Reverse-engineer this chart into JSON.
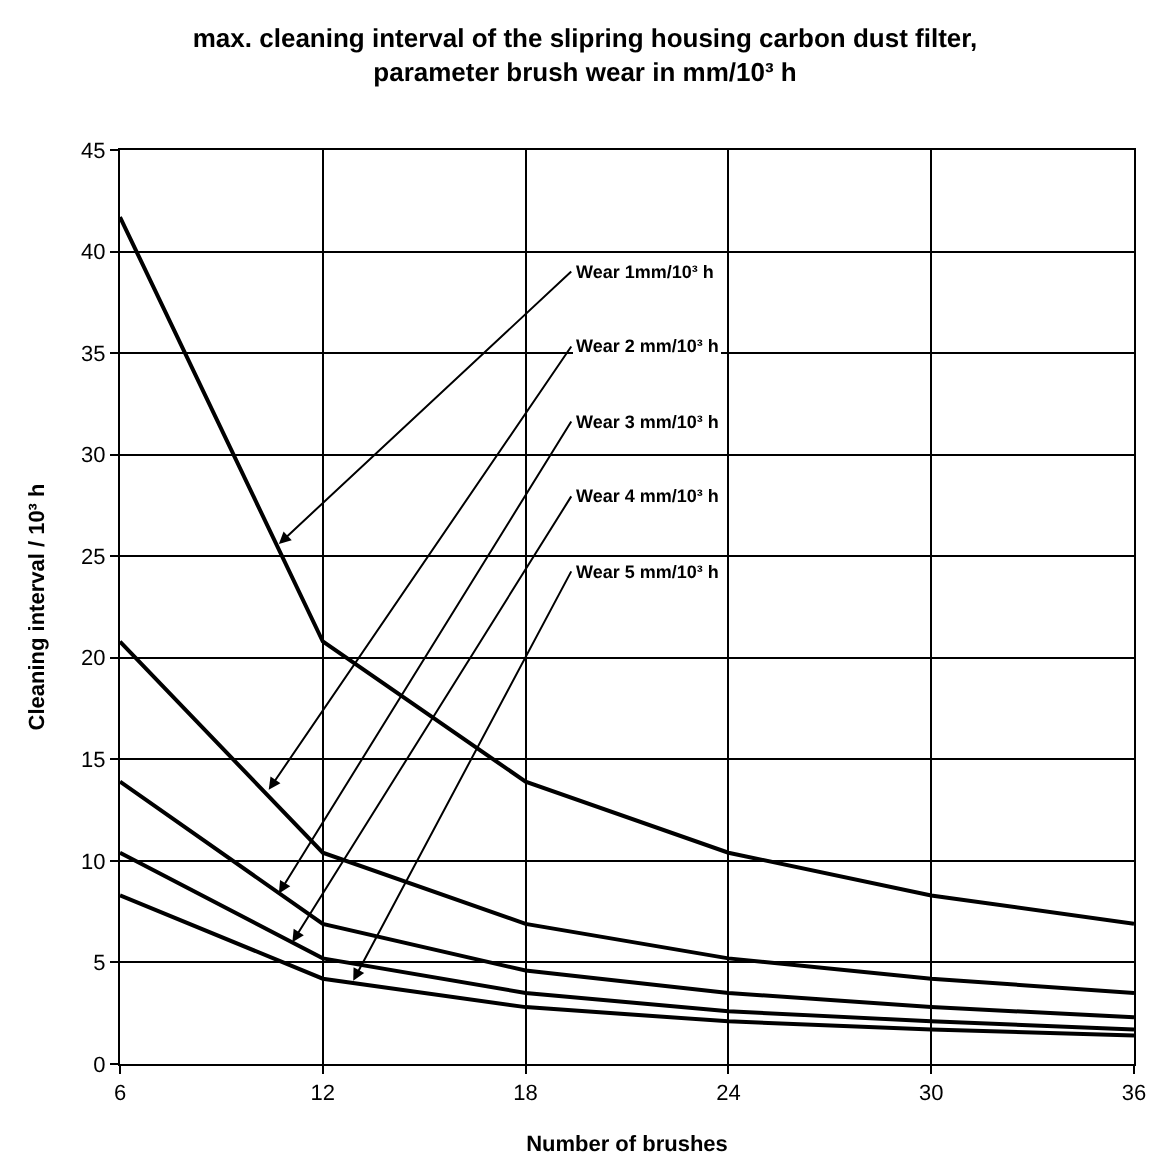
{
  "chart_data": {
    "type": "line",
    "title": "max. cleaning interval of the slipring housing carbon dust filter,\nparameter brush wear in mm/10³ h",
    "xlabel": "Number of brushes",
    "ylabel": "Cleaning interval / 10³ h",
    "x": [
      6,
      12,
      18,
      24,
      30,
      36
    ],
    "series": [
      {
        "color": "#000000",
        "values": [
          41.7,
          20.8,
          13.9,
          10.4,
          8.3,
          6.9
        ]
      },
      {
        "color": "#000000",
        "values": [
          20.8,
          10.4,
          6.9,
          5.2,
          4.2,
          3.5
        ]
      },
      {
        "color": "#000000",
        "values": [
          13.9,
          6.9,
          4.6,
          3.5,
          2.8,
          2.3
        ]
      },
      {
        "color": "#000000",
        "values": [
          10.4,
          5.2,
          3.5,
          2.6,
          2.1,
          1.7
        ]
      },
      {
        "color": "#000000",
        "values": [
          8.3,
          4.2,
          2.8,
          2.1,
          1.7,
          1.4
        ]
      }
    ],
    "annotations": [
      {
        "text": "Wear 1mm/10³ h",
        "x": 10.7,
        "y": 25.6
      },
      {
        "text": "Wear 2 mm/10³ h",
        "x": 10.4,
        "y": 13.5
      },
      {
        "text": "Wear 3 mm/10³ h",
        "x": 10.7,
        "y": 8.4
      },
      {
        "text": "Wear 4 mm/10³ h",
        "x": 11.1,
        "y": 6.0
      },
      {
        "text": "Wear 5 mm/10³ h",
        "x": 12.9,
        "y": 4.1
      }
    ],
    "xlim": [
      6,
      36
    ],
    "xticks": [
      6,
      12,
      18,
      24,
      30,
      36
    ],
    "ylim": [
      0,
      45
    ],
    "yticks": [
      0,
      5,
      10,
      15,
      20,
      25,
      30,
      35,
      40,
      45
    ],
    "grid": true,
    "marker": "none",
    "line_style": "solid"
  }
}
